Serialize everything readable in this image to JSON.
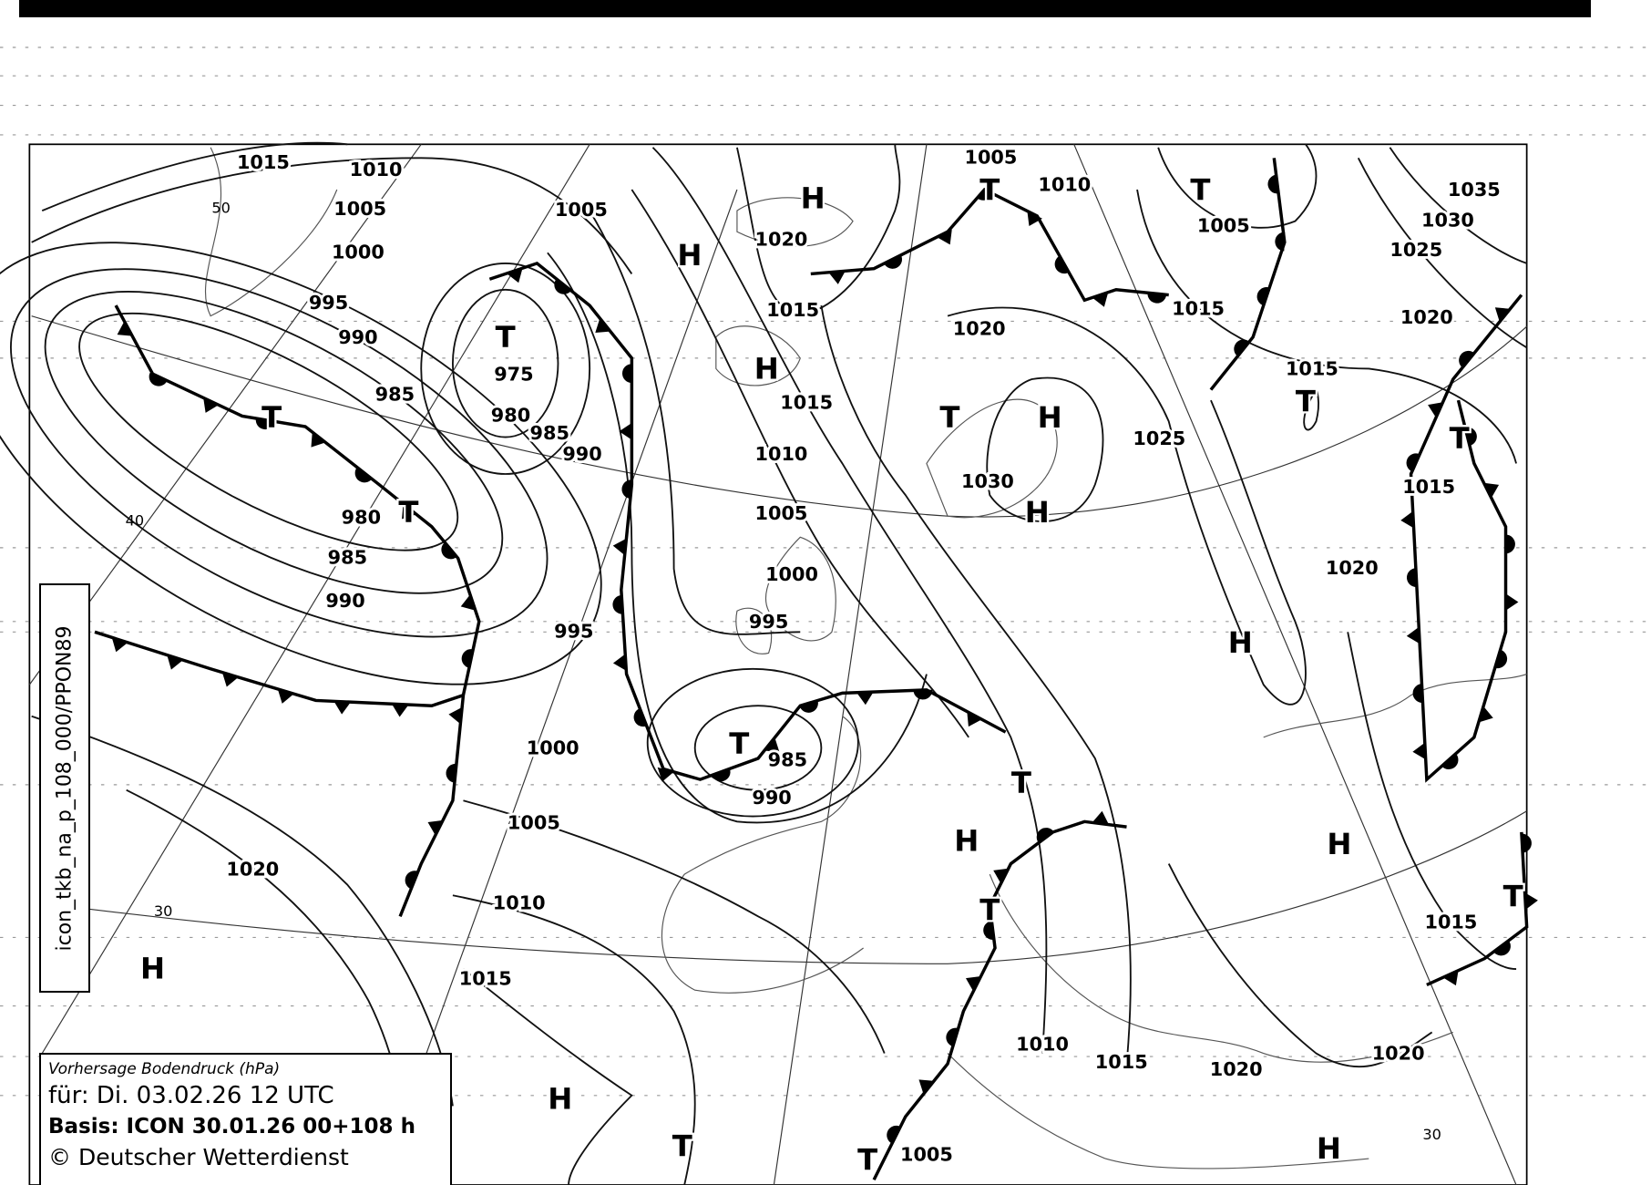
{
  "header_code": "icon_tkb_na_p_108_000/PPON89",
  "legend": {
    "title": "Vorhersage Bodendruck (hPa)",
    "valid": "für:  Di. 03.02.26  12 UTC",
    "basis": "Basis: ICON  30.01.26 00+108 h",
    "copyright": "© Deutscher Wetterdienst"
  },
  "isobar_labels": [
    "1015",
    "1010",
    "1005",
    "1000",
    "995",
    "990",
    "985",
    "975",
    "980",
    "985",
    "990",
    "980",
    "985",
    "990",
    "995",
    "1000",
    "1005",
    "1010",
    "1015",
    "1020",
    "1005",
    "1020",
    "1015",
    "1015",
    "1010",
    "1005",
    "1000",
    "995",
    "985",
    "990",
    "1005",
    "1010",
    "1020",
    "1005",
    "1015",
    "1015",
    "1035",
    "1030",
    "1025",
    "1020",
    "1025",
    "1030",
    "1020",
    "1015",
    "1015",
    "1010",
    "1015",
    "1020",
    "1020",
    "1005"
  ],
  "pressure_centers": [
    "H",
    "H",
    "H",
    "T",
    "T",
    "T",
    "T",
    "T",
    "T",
    "H",
    "H",
    "T",
    "T",
    "H",
    "T",
    "T",
    "H",
    "H",
    "T",
    "T",
    "H",
    "H",
    "T",
    "T",
    "H"
  ],
  "latitude_labels": [
    "50",
    "40",
    "30",
    "30"
  ],
  "colors": {
    "ink": "#000000",
    "paper": "#ffffff"
  }
}
